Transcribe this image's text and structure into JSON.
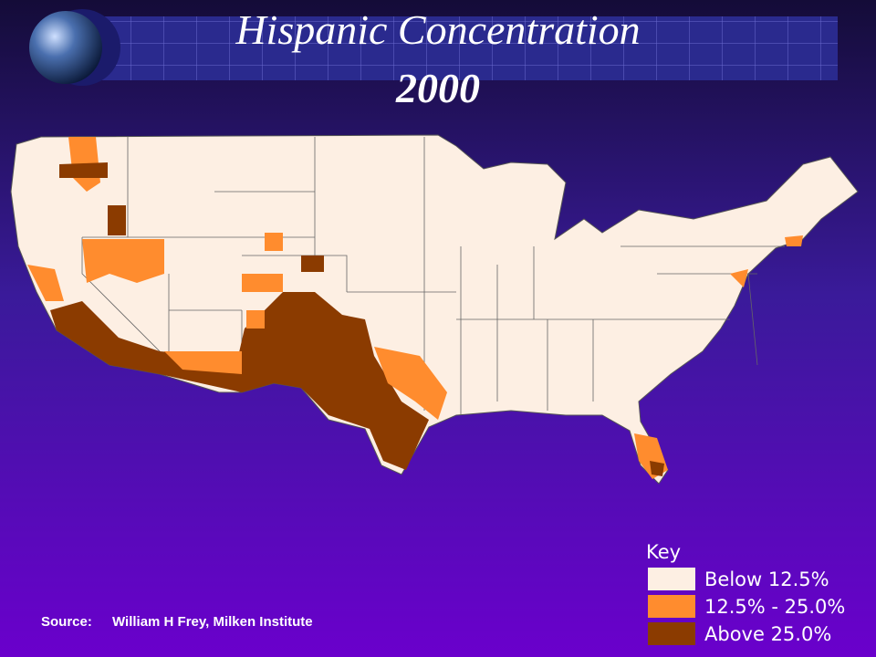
{
  "header": {
    "title": "Hispanic Concentration",
    "year": "2000"
  },
  "legend": {
    "title": "Key",
    "items": [
      {
        "label": "Below 12.5%",
        "color": "#fdefe3"
      },
      {
        "label": "12.5% - 25.0%",
        "color": "#ff8c2e"
      },
      {
        "label": "Above 25.0%",
        "color": "#8b3b00"
      }
    ]
  },
  "source": {
    "label": "Source:",
    "text": "William H Frey, Milken Institute"
  }
}
